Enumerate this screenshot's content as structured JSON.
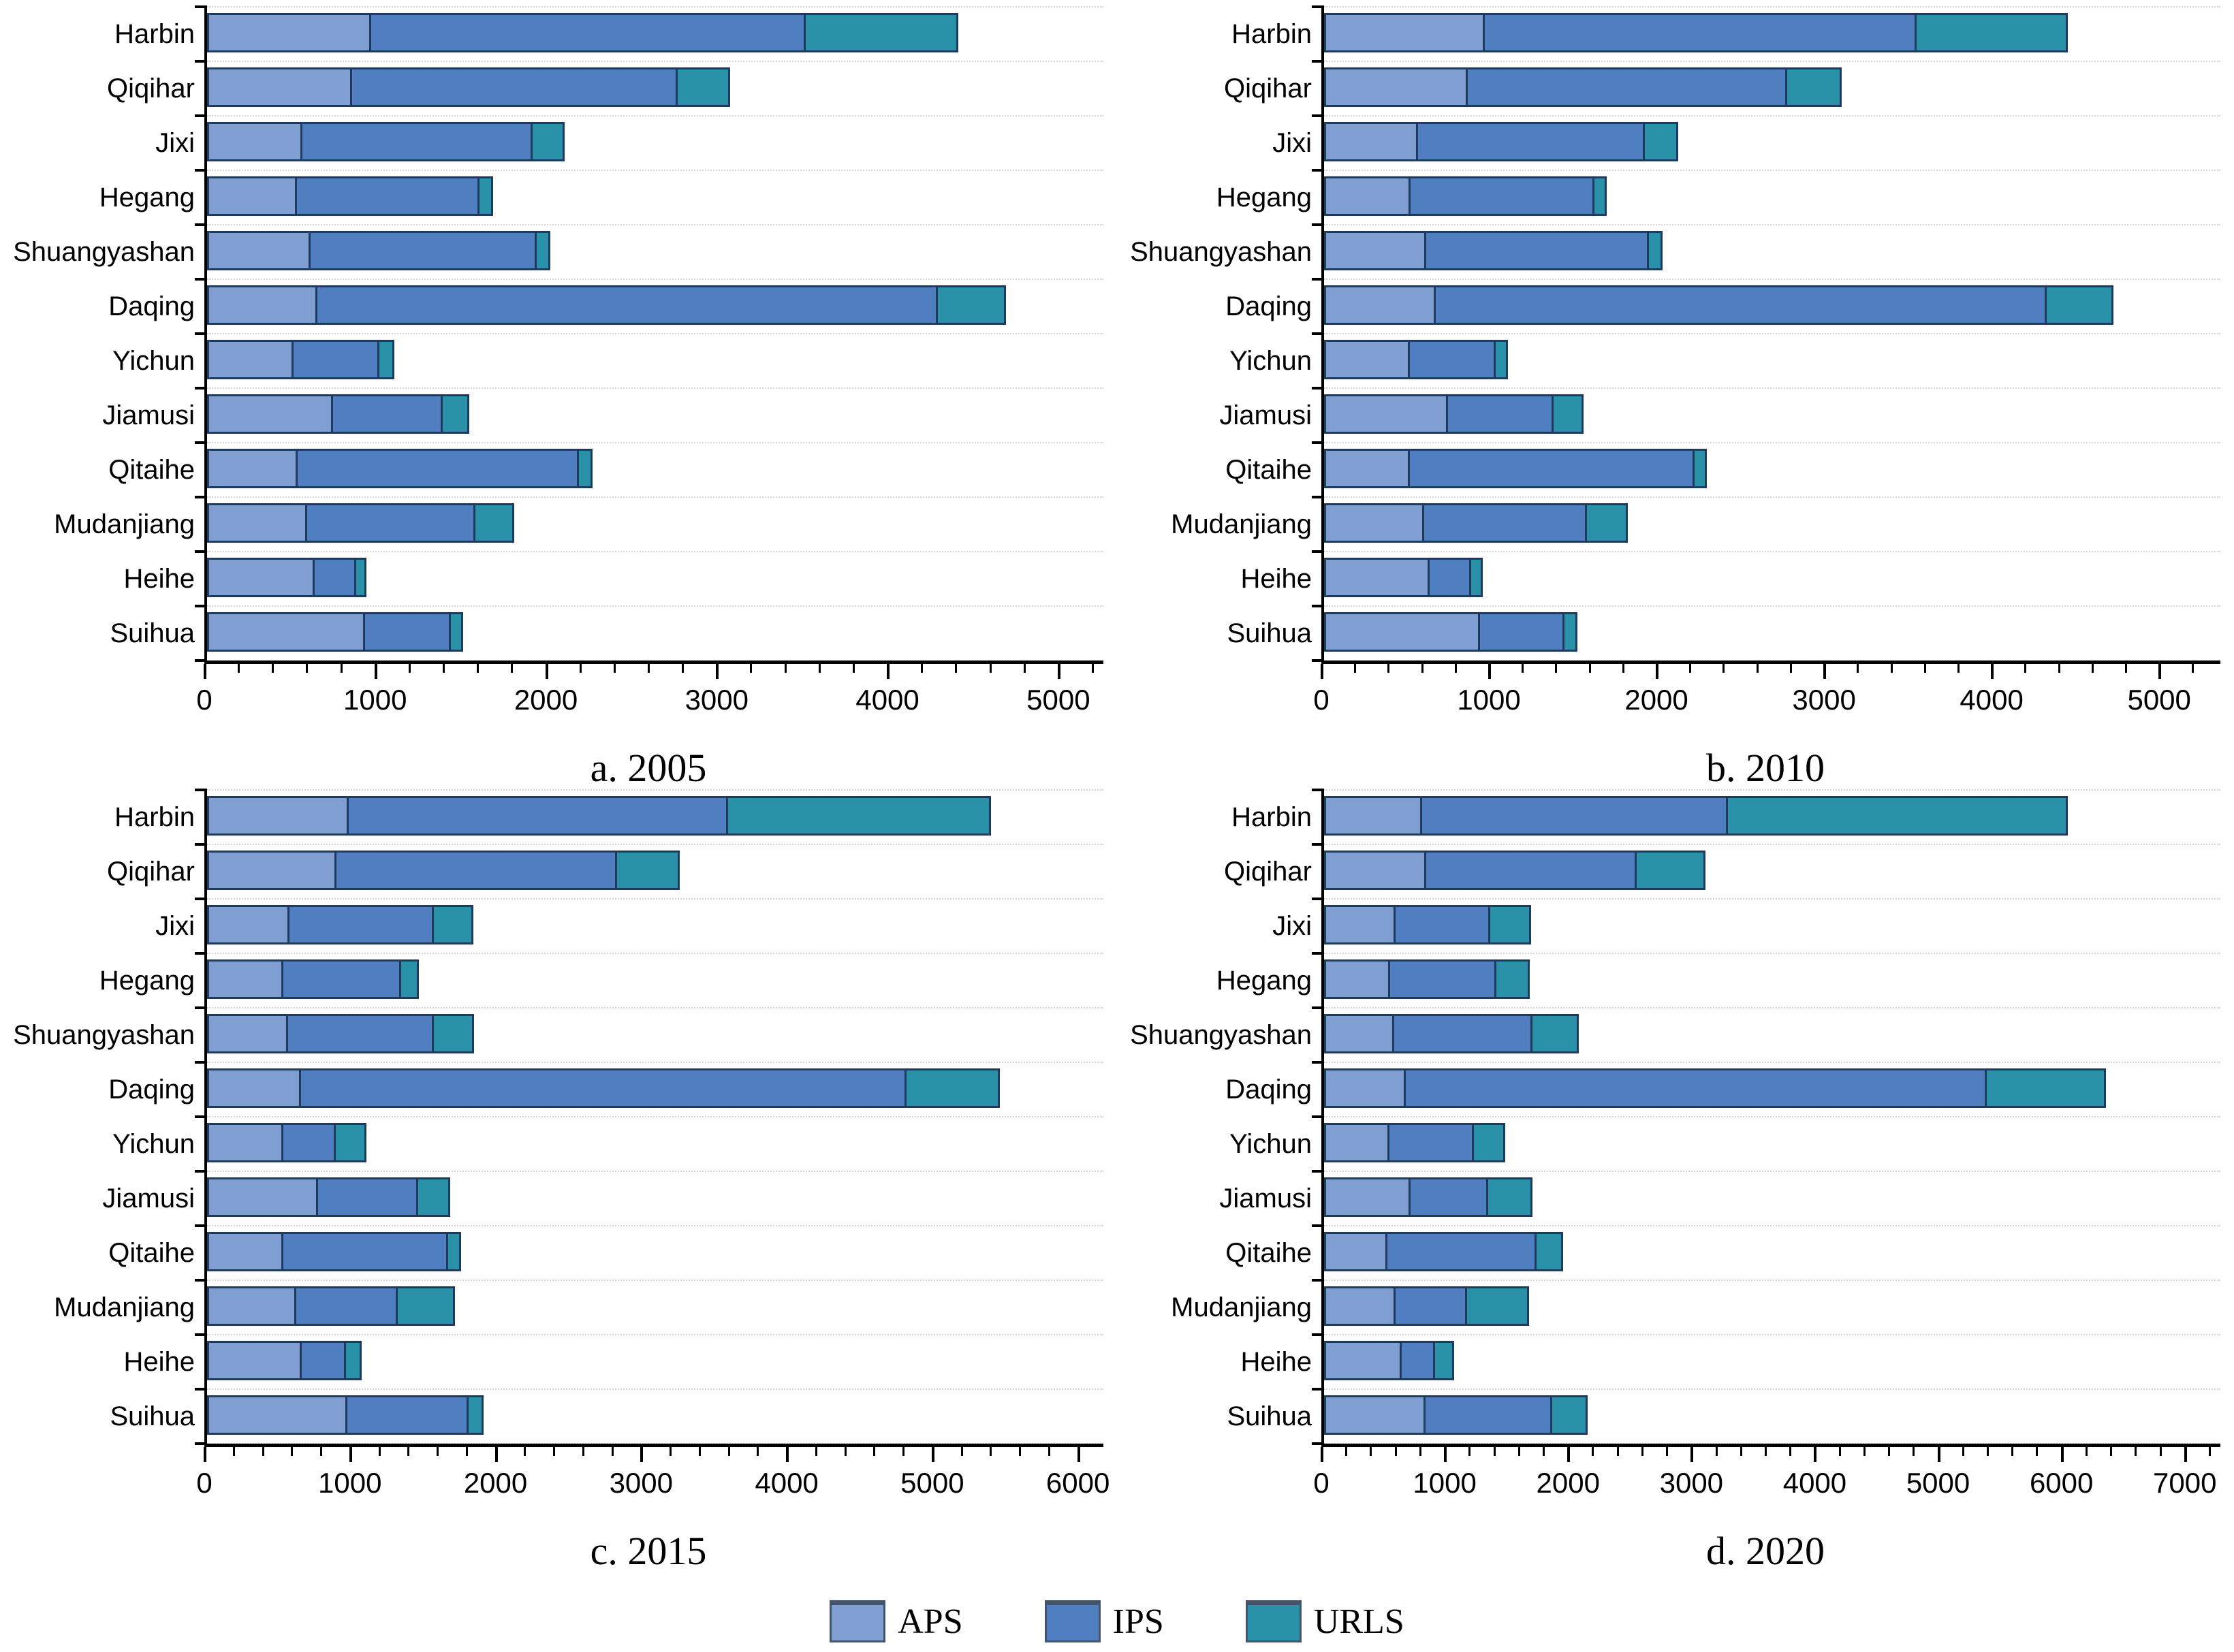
{
  "colors": {
    "aps": "#7f9fd3",
    "ips": "#4f7fc0",
    "urls": "#2a92a8",
    "bar_border": "#1f3a5f",
    "axis": "#000000",
    "gridline": "#d4d4d4"
  },
  "legend": {
    "items": [
      {
        "label": "APS",
        "color_key": "aps"
      },
      {
        "label": "IPS",
        "color_key": "ips"
      },
      {
        "label": "URLS",
        "color_key": "urls"
      }
    ]
  },
  "chart_data": [
    {
      "type": "bar",
      "orientation": "horizontal",
      "title": "a. 2005",
      "categories": [
        "Harbin",
        "Qiqihar",
        "Jixi",
        "Hegang",
        "Shuangyashan",
        "Daqing",
        "Yichun",
        "Jiamusi",
        "Qitaihe",
        "Mudanjiang",
        "Heihe",
        "Suihua"
      ],
      "series": [
        {
          "name": "APS",
          "values": [
            950,
            840,
            550,
            520,
            600,
            630,
            505,
            740,
            520,
            580,
            640,
            935
          ]
        },
        {
          "name": "IPS",
          "values": [
            2570,
            1930,
            1370,
            1090,
            1345,
            3670,
            515,
            650,
            1675,
            1000,
            245,
            505
          ]
        },
        {
          "name": "URLS",
          "values": [
            890,
            300,
            180,
            70,
            70,
            390,
            80,
            150,
            70,
            225,
            50,
            65
          ]
        }
      ],
      "xlim": [
        0,
        5200
      ],
      "xtick_step": 1000,
      "minor_tick_step": 200,
      "grid": "dotted-horizontal",
      "legend_position": "bottom-shared"
    },
    {
      "type": "bar",
      "orientation": "horizontal",
      "title": "b. 2010",
      "categories": [
        "Harbin",
        "Qiqihar",
        "Jixi",
        "Hegang",
        "Shuangyashan",
        "Daqing",
        "Yichun",
        "Jiamusi",
        "Qitaihe",
        "Mudanjiang",
        "Heihe",
        "Suihua"
      ],
      "series": [
        {
          "name": "APS",
          "values": [
            950,
            850,
            550,
            510,
            600,
            650,
            510,
            740,
            500,
            590,
            640,
            940
          ]
        },
        {
          "name": "IPS",
          "values": [
            2600,
            1930,
            1380,
            1120,
            1355,
            3685,
            525,
            640,
            1730,
            990,
            250,
            510
          ]
        },
        {
          "name": "URLS",
          "values": [
            900,
            320,
            190,
            60,
            70,
            390,
            65,
            175,
            60,
            240,
            60,
            65
          ]
        }
      ],
      "xlim": [
        0,
        5300
      ],
      "xtick_step": 1000,
      "minor_tick_step": 200,
      "grid": "dotted-horizontal",
      "legend_position": "bottom-shared"
    },
    {
      "type": "bar",
      "orientation": "horizontal",
      "title": "c. 2015",
      "categories": [
        "Harbin",
        "Qiqihar",
        "Jixi",
        "Hegang",
        "Shuangyashan",
        "Daqing",
        "Yichun",
        "Jiamusi",
        "Qitaihe",
        "Mudanjiang",
        "Heihe",
        "Suihua"
      ],
      "series": [
        {
          "name": "APS",
          "values": [
            960,
            880,
            555,
            515,
            545,
            625,
            525,
            760,
            515,
            605,
            660,
            965
          ]
        },
        {
          "name": "IPS",
          "values": [
            2625,
            1950,
            1015,
            830,
            1025,
            4200,
            365,
            700,
            1160,
            710,
            305,
            850
          ]
        },
        {
          "name": "URLS",
          "values": [
            1815,
            425,
            265,
            115,
            270,
            635,
            210,
            215,
            75,
            395,
            100,
            90
          ]
        }
      ],
      "xlim": [
        0,
        6100
      ],
      "xtick_step": 1000,
      "minor_tick_step": 200,
      "grid": "dotted-horizontal",
      "legend_position": "bottom-shared"
    },
    {
      "type": "bar",
      "orientation": "horizontal",
      "title": "d. 2020",
      "categories": [
        "Harbin",
        "Qiqihar",
        "Jixi",
        "Hegang",
        "Shuangyashan",
        "Daqing",
        "Yichun",
        "Jiamusi",
        "Qitaihe",
        "Mudanjiang",
        "Heihe",
        "Suihua"
      ],
      "series": [
        {
          "name": "APS",
          "values": [
            770,
            815,
            570,
            525,
            555,
            640,
            520,
            695,
            500,
            570,
            640,
            815
          ]
        },
        {
          "name": "IPS",
          "values": [
            2500,
            1730,
            785,
            880,
            1145,
            4755,
            705,
            645,
            1235,
            590,
            270,
            1050
          ]
        },
        {
          "name": "URLS",
          "values": [
            2780,
            555,
            330,
            270,
            370,
            965,
            250,
            355,
            210,
            505,
            150,
            280
          ]
        }
      ],
      "xlim": [
        0,
        7200
      ],
      "xtick_step": 1000,
      "minor_tick_step": 200,
      "grid": "dotted-horizontal",
      "legend_position": "bottom-shared"
    }
  ]
}
